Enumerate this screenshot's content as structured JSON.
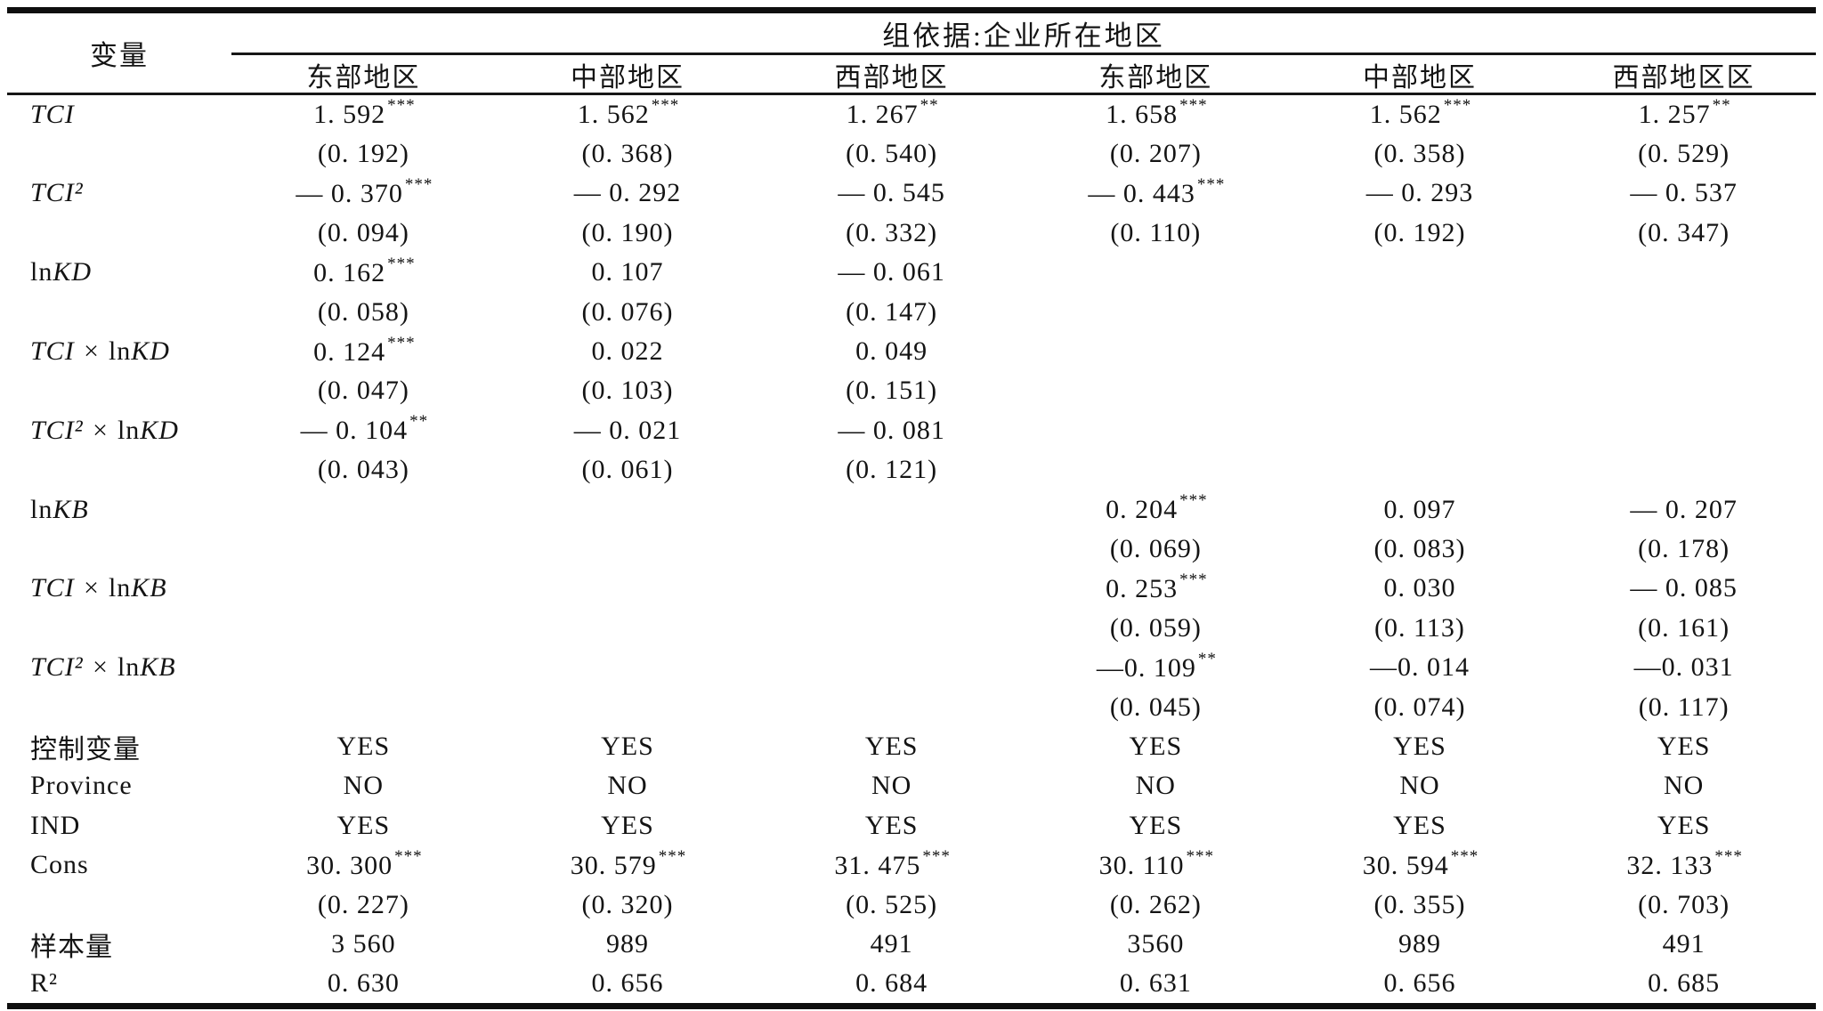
{
  "header": {
    "variable": "变量",
    "group_title": "组依据:企业所在地区",
    "columns": [
      "东部地区",
      "中部地区",
      "西部地区",
      "东部地区",
      "中部地区",
      "西部地区区"
    ]
  },
  "table": {
    "rows": [
      {
        "key": "TCI",
        "label": "TCI",
        "math": true,
        "type": "coef",
        "cells": [
          {
            "v": "1. 592",
            "s": "***"
          },
          {
            "v": "1. 562",
            "s": "***"
          },
          {
            "v": "1. 267",
            "s": "**"
          },
          {
            "v": "1. 658",
            "s": "***"
          },
          {
            "v": "1. 562",
            "s": "***"
          },
          {
            "v": "1. 257",
            "s": "**"
          }
        ],
        "ses": [
          "(0. 192)",
          "(0. 368)",
          "(0. 540)",
          "(0. 207)",
          "(0. 358)",
          "(0. 529)"
        ]
      },
      {
        "key": "TCI2",
        "label": "TCI²",
        "math": true,
        "type": "coef",
        "cells": [
          {
            "v": "— 0. 370",
            "s": "***"
          },
          {
            "v": "— 0. 292",
            "s": ""
          },
          {
            "v": "— 0. 545",
            "s": ""
          },
          {
            "v": "— 0. 443",
            "s": "***"
          },
          {
            "v": "— 0. 293",
            "s": ""
          },
          {
            "v": "— 0. 537",
            "s": ""
          }
        ],
        "ses": [
          "(0. 094)",
          "(0. 190)",
          "(0. 332)",
          "(0. 110)",
          "(0. 192)",
          "(0. 347)"
        ]
      },
      {
        "key": "lnKD",
        "label": "lnKD",
        "math": true,
        "type": "coef",
        "cells": [
          {
            "v": "0. 162",
            "s": "***"
          },
          {
            "v": "0. 107",
            "s": ""
          },
          {
            "v": "— 0. 061",
            "s": ""
          },
          {
            "v": "",
            "s": ""
          },
          {
            "v": "",
            "s": ""
          },
          {
            "v": "",
            "s": ""
          }
        ],
        "ses": [
          "(0. 058)",
          "(0. 076)",
          "(0. 147)",
          "",
          "",
          ""
        ]
      },
      {
        "key": "TCIxlnKD",
        "label": "TCI × lnKD",
        "math": true,
        "type": "coef",
        "cells": [
          {
            "v": "0. 124",
            "s": "***"
          },
          {
            "v": "0. 022",
            "s": ""
          },
          {
            "v": "0. 049",
            "s": ""
          },
          {
            "v": "",
            "s": ""
          },
          {
            "v": "",
            "s": ""
          },
          {
            "v": "",
            "s": ""
          }
        ],
        "ses": [
          "(0. 047)",
          "(0. 103)",
          "(0. 151)",
          "",
          "",
          ""
        ]
      },
      {
        "key": "TCI2xlnKD",
        "label": "TCI² × lnKD",
        "math": true,
        "type": "coef",
        "cells": [
          {
            "v": "— 0. 104",
            "s": "**"
          },
          {
            "v": "— 0. 021",
            "s": ""
          },
          {
            "v": "— 0. 081",
            "s": ""
          },
          {
            "v": "",
            "s": ""
          },
          {
            "v": "",
            "s": ""
          },
          {
            "v": "",
            "s": ""
          }
        ],
        "ses": [
          "(0. 043)",
          "(0. 061)",
          "(0. 121)",
          "",
          "",
          ""
        ]
      },
      {
        "key": "lnKB",
        "label": "lnKB",
        "math": true,
        "type": "coef",
        "cells": [
          {
            "v": "",
            "s": ""
          },
          {
            "v": "",
            "s": ""
          },
          {
            "v": "",
            "s": ""
          },
          {
            "v": "0. 204",
            "s": "***"
          },
          {
            "v": "0. 097",
            "s": ""
          },
          {
            "v": "— 0. 207",
            "s": ""
          }
        ],
        "ses": [
          "",
          "",
          "",
          "(0. 069)",
          "(0. 083)",
          "(0. 178)"
        ]
      },
      {
        "key": "TCIxlnKB",
        "label": "TCI × lnKB",
        "math": true,
        "type": "coef",
        "cells": [
          {
            "v": "",
            "s": ""
          },
          {
            "v": "",
            "s": ""
          },
          {
            "v": "",
            "s": ""
          },
          {
            "v": "0. 253",
            "s": "***"
          },
          {
            "v": "0. 030",
            "s": ""
          },
          {
            "v": "— 0. 085",
            "s": ""
          }
        ],
        "ses": [
          "",
          "",
          "",
          "(0. 059)",
          "(0. 113)",
          "(0. 161)"
        ]
      },
      {
        "key": "TCI2xlnKB",
        "label": "TCI² × lnKB",
        "math": true,
        "type": "coef",
        "cells": [
          {
            "v": "",
            "s": ""
          },
          {
            "v": "",
            "s": ""
          },
          {
            "v": "",
            "s": ""
          },
          {
            "v": "—0. 109",
            "s": "**"
          },
          {
            "v": "—0. 014",
            "s": ""
          },
          {
            "v": "—0. 031",
            "s": ""
          }
        ],
        "ses": [
          "",
          "",
          "",
          "(0. 045)",
          "(0. 074)",
          "(0. 117)"
        ]
      },
      {
        "key": "controls",
        "label": "控制变量",
        "math": false,
        "type": "info",
        "cells": [
          "YES",
          "YES",
          "YES",
          "YES",
          "YES",
          "YES"
        ]
      },
      {
        "key": "province",
        "label": "Province",
        "math": false,
        "type": "info",
        "cells": [
          "NO",
          "NO",
          "NO",
          "NO",
          "NO",
          "NO"
        ]
      },
      {
        "key": "ind",
        "label": "IND",
        "math": false,
        "type": "info",
        "cells": [
          "YES",
          "YES",
          "YES",
          "YES",
          "YES",
          "YES"
        ]
      },
      {
        "key": "cons",
        "label": "Cons",
        "math": false,
        "type": "coef",
        "cells": [
          {
            "v": "30. 300",
            "s": "***"
          },
          {
            "v": "30. 579",
            "s": "***"
          },
          {
            "v": "31. 475",
            "s": "***"
          },
          {
            "v": "30. 110",
            "s": "***"
          },
          {
            "v": "30. 594",
            "s": "***"
          },
          {
            "v": "32. 133",
            "s": "***"
          }
        ],
        "ses": [
          "(0. 227)",
          "(0. 320)",
          "(0. 525)",
          "(0. 262)",
          "(0. 355)",
          "(0. 703)"
        ]
      },
      {
        "key": "samplesize",
        "label": "样本量",
        "math": false,
        "type": "info",
        "cells": [
          "3 560",
          "989",
          "491",
          "3560",
          "989",
          "491"
        ]
      },
      {
        "key": "r2",
        "label": "R²",
        "math": false,
        "type": "info",
        "cells": [
          "0. 630",
          "0. 656",
          "0. 684",
          "0. 631",
          "0. 656",
          "0. 685"
        ]
      }
    ]
  }
}
